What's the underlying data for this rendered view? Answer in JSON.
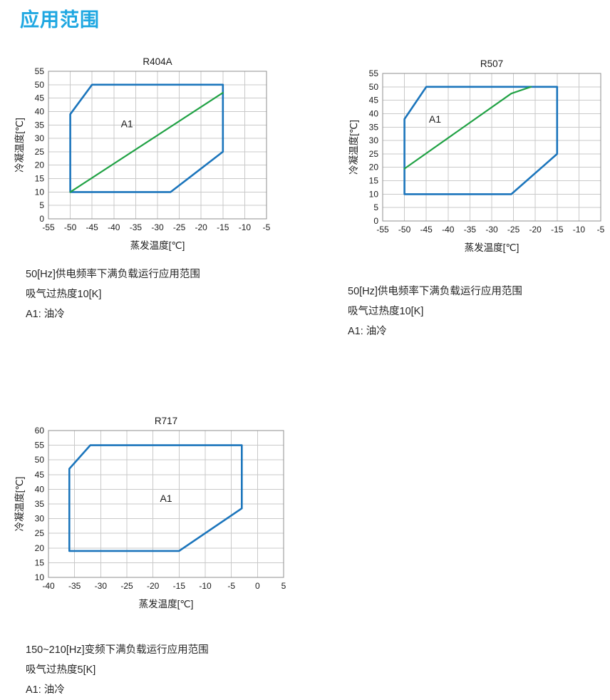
{
  "page": {
    "title": "应用范围"
  },
  "colors": {
    "heading": "#1ea7e1",
    "envelope_blue": "#1b75bc",
    "oil_line_green": "#21a245",
    "grid": "#c9c9c9",
    "border": "#8f8f8f",
    "text": "#1a1a1a"
  },
  "chart_data": [
    {
      "id": "R404A",
      "type": "line",
      "title": "R404A",
      "xlabel": "蒸发温度[℃]",
      "ylabel": "冷凝温度[℃]",
      "xlim": [
        -55,
        -5
      ],
      "ylim": [
        0,
        55
      ],
      "xticks": [
        -55,
        -50,
        -45,
        -40,
        -35,
        -30,
        -25,
        -20,
        -15,
        -10,
        -5
      ],
      "yticks": [
        0,
        5,
        10,
        15,
        20,
        25,
        30,
        35,
        40,
        45,
        50,
        55
      ],
      "grid": true,
      "legend_position": "none",
      "annotations": [
        {
          "text": "A1",
          "x": -37,
          "y": 35.5
        }
      ],
      "series": [
        {
          "name": "operating-envelope",
          "color": "#1b75bc",
          "width": 2.6,
          "closed": true,
          "points": [
            [
              -50,
              10
            ],
            [
              -50,
              39
            ],
            [
              -45,
              50
            ],
            [
              -15,
              50
            ],
            [
              -15,
              25
            ],
            [
              -27,
              10
            ]
          ]
        },
        {
          "name": "oil-cooling-limit",
          "color": "#21a245",
          "width": 2.2,
          "closed": false,
          "points": [
            [
              -50,
              10
            ],
            [
              -15,
              47
            ]
          ]
        }
      ],
      "notes": [
        "50[Hz]供电频率下满负载运行应用范围",
        "吸气过热度10[K]",
        "A1: 油冷"
      ]
    },
    {
      "id": "R507",
      "type": "line",
      "title": "R507",
      "xlabel": "蒸发温度[℃]",
      "ylabel": "冷凝温度[℃]",
      "xlim": [
        -55,
        -5
      ],
      "ylim": [
        0,
        55
      ],
      "xticks": [
        -55,
        -50,
        -45,
        -40,
        -35,
        -30,
        -25,
        -20,
        -15,
        -10,
        -5
      ],
      "yticks": [
        0,
        5,
        10,
        15,
        20,
        25,
        30,
        35,
        40,
        45,
        50,
        55
      ],
      "grid": true,
      "legend_position": "none",
      "annotations": [
        {
          "text": "A1",
          "x": -43,
          "y": 38
        }
      ],
      "series": [
        {
          "name": "operating-envelope",
          "color": "#1b75bc",
          "width": 2.6,
          "closed": true,
          "points": [
            [
              -50,
              10
            ],
            [
              -50,
              38
            ],
            [
              -45,
              50
            ],
            [
              -15,
              50
            ],
            [
              -15,
              25
            ],
            [
              -25.5,
              10
            ]
          ]
        },
        {
          "name": "oil-cooling-limit",
          "color": "#21a245",
          "width": 2.2,
          "closed": false,
          "points": [
            [
              -50,
              19.5
            ],
            [
              -25.5,
              47.5
            ],
            [
              -21,
              50
            ]
          ]
        }
      ],
      "notes": [
        "50[Hz]供电频率下满负载运行应用范围",
        "吸气过热度10[K]",
        "A1: 油冷"
      ]
    },
    {
      "id": "R717",
      "type": "line",
      "title": "R717",
      "xlabel": "蒸发温度[℃]",
      "ylabel": "冷凝温度[℃]",
      "xlim": [
        -40,
        5
      ],
      "ylim": [
        10,
        60
      ],
      "xticks": [
        -40,
        -35,
        -30,
        -25,
        -20,
        -15,
        -10,
        -5,
        0,
        5
      ],
      "yticks": [
        10,
        15,
        20,
        25,
        30,
        35,
        40,
        45,
        50,
        55,
        60
      ],
      "grid": true,
      "legend_position": "none",
      "annotations": [
        {
          "text": "A1",
          "x": -17.5,
          "y": 37
        }
      ],
      "series": [
        {
          "name": "operating-envelope",
          "color": "#1b75bc",
          "width": 2.6,
          "closed": true,
          "points": [
            [
              -36,
              19
            ],
            [
              -36,
              47
            ],
            [
              -32,
              55
            ],
            [
              -3,
              55
            ],
            [
              -3,
              33.5
            ],
            [
              -15,
              19
            ]
          ]
        }
      ],
      "notes": [
        "150~210[Hz]变频下满负载运行应用范围",
        "吸气过热度5[K]",
        "A1: 油冷"
      ]
    }
  ]
}
